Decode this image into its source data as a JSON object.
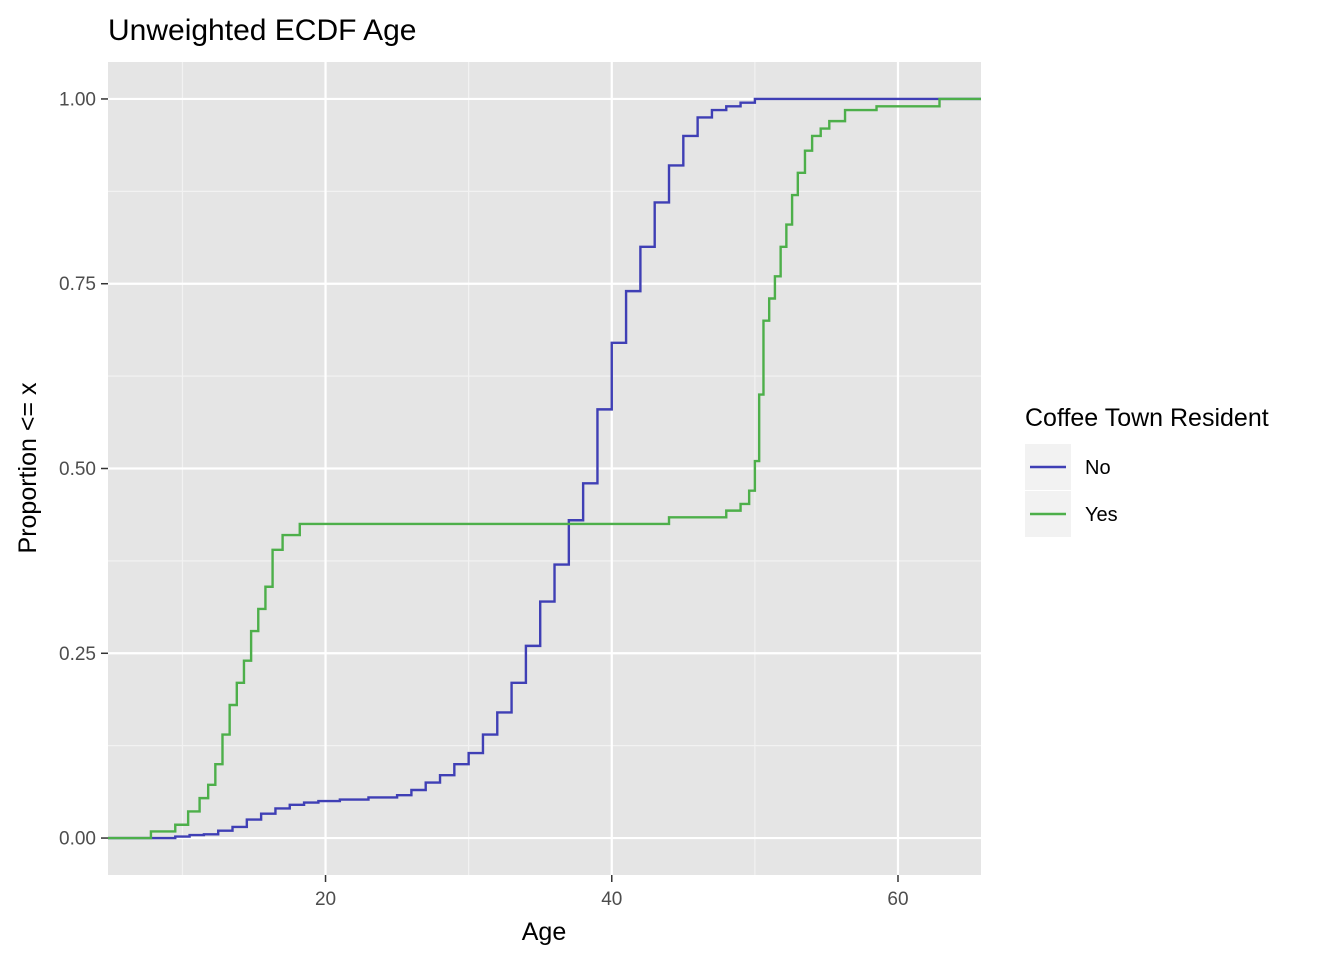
{
  "chart_data": {
    "type": "line",
    "subtype": "ecdf-step",
    "title": "Unweighted ECDF Age",
    "xlabel": "Age",
    "ylabel": "Proportion <= x",
    "xlim": [
      4.8,
      65.8
    ],
    "ylim": [
      -0.05,
      1.05
    ],
    "x_ticks": [
      20,
      40,
      60
    ],
    "x_tick_labels": [
      "20",
      "40",
      "60"
    ],
    "y_ticks": [
      0,
      0.25,
      0.5,
      0.75,
      1
    ],
    "y_tick_labels": [
      "0.00",
      "0.25",
      "0.50",
      "0.75",
      "1.00"
    ],
    "grid": true,
    "panel_background": "#e5e5e5",
    "legend": {
      "title": "Coffee Town Resident",
      "position": "right"
    },
    "series": [
      {
        "name": "No",
        "color": "#3f3fb5",
        "x": [
          4.8,
          7.5,
          9.5,
          10.5,
          11.5,
          12.5,
          13.5,
          14.5,
          15.5,
          16.5,
          17.5,
          18.5,
          19.5,
          21,
          23,
          25,
          26,
          27,
          28,
          29,
          30,
          31,
          32,
          33,
          34,
          35,
          36,
          37,
          38,
          39,
          40,
          41,
          42,
          43,
          44,
          45,
          46,
          47,
          48,
          49,
          50,
          51,
          52,
          55,
          60,
          63,
          65.8
        ],
        "y": [
          0,
          0,
          0.002,
          0.004,
          0.005,
          0.01,
          0.015,
          0.025,
          0.033,
          0.04,
          0.045,
          0.048,
          0.05,
          0.052,
          0.055,
          0.058,
          0.065,
          0.075,
          0.085,
          0.1,
          0.115,
          0.14,
          0.17,
          0.21,
          0.26,
          0.32,
          0.37,
          0.43,
          0.48,
          0.58,
          0.67,
          0.74,
          0.8,
          0.86,
          0.91,
          0.95,
          0.975,
          0.985,
          0.99,
          0.995,
          1.0,
          1.0,
          1.0,
          1.0,
          1.0,
          1.0,
          1.0
        ]
      },
      {
        "name": "Yes",
        "color": "#4daf4a",
        "x": [
          4.8,
          7.8,
          9.5,
          10.4,
          11.2,
          11.8,
          12.3,
          12.8,
          13.3,
          13.8,
          14.3,
          14.8,
          15.3,
          15.8,
          16.3,
          17.0,
          18.2,
          44.0,
          48.0,
          49.0,
          49.6,
          50.0,
          50.3,
          50.6,
          51.0,
          51.4,
          51.8,
          52.2,
          52.6,
          53.0,
          53.5,
          54.0,
          54.6,
          55.2,
          56.3,
          58.5,
          62.9,
          65.8
        ],
        "y": [
          0,
          0.009,
          0.018,
          0.036,
          0.054,
          0.072,
          0.1,
          0.14,
          0.18,
          0.21,
          0.24,
          0.28,
          0.31,
          0.34,
          0.39,
          0.41,
          0.425,
          0.434,
          0.443,
          0.452,
          0.47,
          0.51,
          0.6,
          0.7,
          0.73,
          0.76,
          0.8,
          0.83,
          0.87,
          0.9,
          0.93,
          0.95,
          0.96,
          0.97,
          0.985,
          0.99,
          1.0,
          1.0
        ]
      }
    ]
  }
}
